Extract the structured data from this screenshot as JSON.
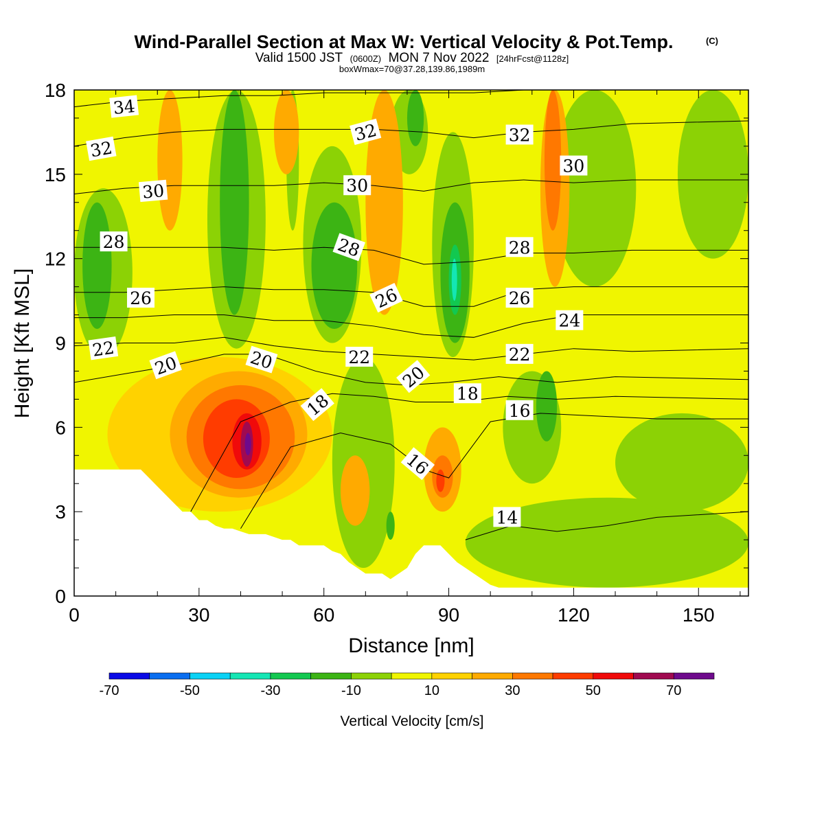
{
  "titles": {
    "main": "Wind-Parallel Section at Max W: Vertical Velocity & Pot.Temp.",
    "main_mark": "(C)",
    "line2_prefix": "Valid 1500 JST",
    "line2_z": "(0600Z)",
    "line2_mid": "MON 7 Nov 2022",
    "line2_fcst": "[24hrFcst@1128z]",
    "line3": "boxWmax=70@37.28,139.86,1989m"
  },
  "chart_data": {
    "type": "heatmap",
    "xlabel": "Distance [nm]",
    "ylabel": "Height [Kft MSL]",
    "xlim": [
      0,
      162
    ],
    "ylim": [
      0,
      18
    ],
    "x_ticks": [
      "0",
      "30",
      "60",
      "90",
      "120",
      "150"
    ],
    "y_ticks": [
      "0",
      "3",
      "6",
      "9",
      "12",
      "15",
      "18"
    ],
    "x_tick_values": [
      0,
      30,
      60,
      90,
      120,
      150
    ],
    "y_tick_values": [
      0,
      3,
      6,
      9,
      12,
      15,
      18
    ],
    "colorbar": {
      "title": "Vertical Velocity [cm/s]",
      "min": -70,
      "max": 80,
      "step": 10,
      "labels": [
        "-70",
        "-50",
        "-30",
        "-10",
        "10",
        "30",
        "50",
        "70"
      ],
      "label_values": [
        -70,
        -50,
        -30,
        -10,
        10,
        30,
        50,
        70
      ],
      "colors": [
        "#0a0ae6",
        "#0a6ef0",
        "#0ad2f5",
        "#14e6b4",
        "#12c850",
        "#3cb414",
        "#8cd205",
        "#f0f500",
        "#ffd200",
        "#ffaa00",
        "#ff7800",
        "#ff3c00",
        "#f00a0a",
        "#a00a50",
        "#6e0a8c"
      ]
    },
    "vertical_velocity_cells": [
      {
        "x": [
          0,
          162
        ],
        "y": [
          0,
          18
        ],
        "w": 5
      },
      {
        "x": [
          0,
          14
        ],
        "y": [
          8.5,
          14.5
        ],
        "w": -7
      },
      {
        "x": [
          2,
          9
        ],
        "y": [
          9.5,
          14
        ],
        "w": -13
      },
      {
        "x": [
          32,
          46
        ],
        "y": [
          8.8,
          18
        ],
        "w": -7
      },
      {
        "x": [
          35,
          42
        ],
        "y": [
          10,
          18
        ],
        "w": -13
      },
      {
        "x": [
          51,
          54
        ],
        "y": [
          13,
          18
        ],
        "w": -7
      },
      {
        "x": [
          55,
          69
        ],
        "y": [
          9,
          16
        ],
        "w": -7
      },
      {
        "x": [
          57,
          68
        ],
        "y": [
          9.5,
          14
        ],
        "w": -13
      },
      {
        "x": [
          76,
          85
        ],
        "y": [
          15,
          18
        ],
        "w": -7
      },
      {
        "x": [
          80,
          84
        ],
        "y": [
          16,
          18
        ],
        "w": -13
      },
      {
        "x": [
          86,
          96
        ],
        "y": [
          8.5,
          16.5
        ],
        "w": -7
      },
      {
        "x": [
          88,
          95
        ],
        "y": [
          9,
          14
        ],
        "w": -13
      },
      {
        "x": [
          90,
          93
        ],
        "y": [
          10,
          12.5
        ],
        "w": -27
      },
      {
        "x": [
          90.7,
          92
        ],
        "y": [
          10.5,
          12
        ],
        "w": -35
      },
      {
        "x": [
          115,
          135
        ],
        "y": [
          11,
          18
        ],
        "w": -7
      },
      {
        "x": [
          103,
          117
        ],
        "y": [
          4,
          8
        ],
        "w": -7
      },
      {
        "x": [
          111,
          116
        ],
        "y": [
          5.5,
          8
        ],
        "w": -13
      },
      {
        "x": [
          62,
          77
        ],
        "y": [
          1,
          8.5
        ],
        "w": -7
      },
      {
        "x": [
          75,
          77
        ],
        "y": [
          2,
          3
        ],
        "w": -13
      },
      {
        "x": [
          94,
          162
        ],
        "y": [
          0.3,
          3.5
        ],
        "w": -7
      },
      {
        "x": [
          130,
          162
        ],
        "y": [
          3,
          6.5
        ],
        "w": -7
      },
      {
        "x": [
          145,
          162
        ],
        "y": [
          12,
          18
        ],
        "w": -7
      },
      {
        "x": [
          8,
          62
        ],
        "y": [
          3,
          8.5
        ],
        "w": 15
      },
      {
        "x": [
          23,
          56
        ],
        "y": [
          3.5,
          8
        ],
        "w": 25
      },
      {
        "x": [
          27,
          53
        ],
        "y": [
          3.8,
          7.5
        ],
        "w": 35
      },
      {
        "x": [
          31,
          47
        ],
        "y": [
          4.2,
          7
        ],
        "w": 45
      },
      {
        "x": [
          38,
          45
        ],
        "y": [
          4.5,
          6.5
        ],
        "w": 55
      },
      {
        "x": [
          40,
          43
        ],
        "y": [
          4.6,
          6.2
        ],
        "w": 65
      },
      {
        "x": [
          41,
          42.5
        ],
        "y": [
          5,
          5.8
        ],
        "w": 75
      },
      {
        "x": [
          64,
          71
        ],
        "y": [
          2.5,
          5
        ],
        "w": 25
      },
      {
        "x": [
          84,
          93
        ],
        "y": [
          3,
          6
        ],
        "w": 25
      },
      {
        "x": [
          86,
          91
        ],
        "y": [
          3.5,
          5
        ],
        "w": 35
      },
      {
        "x": [
          87,
          89
        ],
        "y": [
          3.7,
          4.5
        ],
        "w": 45
      },
      {
        "x": [
          70,
          79
        ],
        "y": [
          10,
          18
        ],
        "w": 25
      },
      {
        "x": [
          112,
          119
        ],
        "y": [
          11,
          18
        ],
        "w": 25
      },
      {
        "x": [
          113,
          117
        ],
        "y": [
          13,
          18
        ],
        "w": 35
      },
      {
        "x": [
          20,
          26
        ],
        "y": [
          13,
          18
        ],
        "w": 25
      },
      {
        "x": [
          48,
          54
        ],
        "y": [
          15,
          18
        ],
        "w": 25
      }
    ],
    "terrain_profile": {
      "x": [
        0,
        16,
        18,
        20,
        22,
        24,
        26,
        28,
        30,
        32,
        34,
        36,
        38,
        40,
        42,
        44,
        46,
        48,
        50,
        52,
        54,
        56,
        58,
        60,
        62,
        64,
        66,
        68,
        70,
        72,
        74,
        76,
        78,
        80,
        82,
        84,
        86,
        88,
        90,
        92,
        94,
        96,
        98,
        100,
        102,
        104,
        162
      ],
      "y": [
        4.5,
        4.5,
        4.2,
        3.9,
        3.6,
        3.3,
        3.0,
        3.0,
        2.7,
        2.7,
        2.5,
        2.4,
        2.4,
        2.3,
        2.2,
        2.2,
        2.2,
        2.1,
        2.0,
        2.0,
        1.8,
        1.8,
        1.8,
        1.8,
        1.6,
        1.5,
        1.2,
        1.0,
        0.8,
        0.8,
        0.8,
        0.6,
        0.8,
        1.0,
        1.5,
        1.8,
        1.8,
        1.8,
        1.5,
        1.2,
        1.0,
        0.8,
        0.6,
        0.4,
        0.3,
        0.3,
        0.3
      ]
    },
    "theta_contours": [
      {
        "label": "14",
        "x": [
          94,
          105,
          116,
          128,
          140,
          162
        ],
        "y": [
          2.0,
          2.5,
          2.3,
          2.5,
          2.8,
          3.0
        ]
      },
      {
        "label": "16",
        "x": [
          40,
          52,
          64,
          76,
          84,
          90,
          100,
          112,
          126,
          140,
          162
        ],
        "y": [
          2.4,
          5.3,
          5.8,
          5.4,
          4.5,
          4.2,
          6.2,
          6.5,
          6.4,
          6.3,
          6.3
        ]
      },
      {
        "label": "18",
        "x": [
          28,
          40,
          52,
          62,
          72,
          82,
          92,
          104,
          116,
          130,
          162
        ],
        "y": [
          3.0,
          6.2,
          6.9,
          7.2,
          7.1,
          6.9,
          6.9,
          7.1,
          7.0,
          7.1,
          7.0
        ]
      },
      {
        "label": "20",
        "x": [
          0,
          12,
          24,
          36,
          46,
          58,
          70,
          80,
          90,
          102,
          116,
          130,
          162
        ],
        "y": [
          7.6,
          7.9,
          8.2,
          8.6,
          8.6,
          8.0,
          7.6,
          7.5,
          7.6,
          7.8,
          7.6,
          7.8,
          7.7
        ]
      },
      {
        "label": "22",
        "x": [
          0,
          12,
          24,
          36,
          48,
          60,
          72,
          84,
          96,
          108,
          120,
          134,
          162
        ],
        "y": [
          8.9,
          9.0,
          9.0,
          9.2,
          8.9,
          8.7,
          8.6,
          8.5,
          8.4,
          8.6,
          8.8,
          8.7,
          8.8
        ]
      },
      {
        "label": "24",
        "x": [
          0,
          12,
          24,
          36,
          48,
          60,
          72,
          84,
          96,
          108,
          120,
          134,
          162
        ],
        "y": [
          9.9,
          9.9,
          10.0,
          10.0,
          9.8,
          9.8,
          9.6,
          9.3,
          9.2,
          9.7,
          10.0,
          10.0,
          10.0
        ]
      },
      {
        "label": "26",
        "x": [
          0,
          12,
          24,
          36,
          48,
          60,
          72,
          84,
          96,
          108,
          120,
          134,
          162
        ],
        "y": [
          10.8,
          10.8,
          10.9,
          11.0,
          10.9,
          10.9,
          10.8,
          10.3,
          10.3,
          10.9,
          11.0,
          11.0,
          11.0
        ]
      },
      {
        "label": "28",
        "x": [
          0,
          12,
          24,
          36,
          48,
          60,
          72,
          84,
          96,
          108,
          120,
          134,
          162
        ],
        "y": [
          12.4,
          12.4,
          12.4,
          12.4,
          12.3,
          12.4,
          12.3,
          11.8,
          11.9,
          12.2,
          12.2,
          12.3,
          12.3
        ]
      },
      {
        "label": "30",
        "x": [
          0,
          12,
          24,
          36,
          48,
          60,
          72,
          84,
          96,
          108,
          120,
          134,
          162
        ],
        "y": [
          14.3,
          14.5,
          14.6,
          14.6,
          14.6,
          14.7,
          14.6,
          14.4,
          14.7,
          14.8,
          14.7,
          14.8,
          14.8
        ]
      },
      {
        "label": "32",
        "x": [
          0,
          12,
          24,
          36,
          48,
          60,
          72,
          84,
          96,
          108,
          120,
          134,
          162
        ],
        "y": [
          16.0,
          16.3,
          16.5,
          16.6,
          16.6,
          16.6,
          16.6,
          16.5,
          16.3,
          16.5,
          16.6,
          16.8,
          16.9
        ]
      },
      {
        "label": "34",
        "x": [
          0,
          12,
          24,
          36,
          48,
          60,
          72,
          84,
          96,
          108,
          120,
          134,
          162
        ],
        "y": [
          17.4,
          17.6,
          17.7,
          17.8,
          17.8,
          17.9,
          17.9,
          17.9,
          17.9,
          18.0,
          18.0,
          18.0,
          18.0
        ]
      }
    ],
    "contour_labels": [
      {
        "text": "34",
        "x": 12,
        "y": 17.4,
        "angle": -6
      },
      {
        "text": "32",
        "x": 6.5,
        "y": 15.9,
        "angle": -10
      },
      {
        "text": "30",
        "x": 19,
        "y": 14.4,
        "angle": -5
      },
      {
        "text": "28",
        "x": 9.5,
        "y": 12.6,
        "angle": 0
      },
      {
        "text": "26",
        "x": 16,
        "y": 10.6,
        "angle": 0
      },
      {
        "text": "22",
        "x": 7,
        "y": 8.8,
        "angle": -8
      },
      {
        "text": "20",
        "x": 22,
        "y": 8.2,
        "angle": -20
      },
      {
        "text": "20",
        "x": 45,
        "y": 8.4,
        "angle": 18
      },
      {
        "text": "18",
        "x": 58.5,
        "y": 6.8,
        "angle": -40
      },
      {
        "text": "22",
        "x": 68.5,
        "y": 8.5,
        "angle": 0
      },
      {
        "text": "20",
        "x": 81.5,
        "y": 7.8,
        "angle": -40
      },
      {
        "text": "18",
        "x": 94.5,
        "y": 7.2,
        "angle": 0
      },
      {
        "text": "16",
        "x": 82.5,
        "y": 4.7,
        "angle": 40
      },
      {
        "text": "32",
        "x": 70,
        "y": 16.5,
        "angle": -15
      },
      {
        "text": "30",
        "x": 68,
        "y": 14.6,
        "angle": 0
      },
      {
        "text": "28",
        "x": 66,
        "y": 12.4,
        "angle": 20
      },
      {
        "text": "26",
        "x": 75,
        "y": 10.6,
        "angle": -25
      },
      {
        "text": "32",
        "x": 107,
        "y": 16.4,
        "angle": 0
      },
      {
        "text": "30",
        "x": 120,
        "y": 15.3,
        "angle": 0
      },
      {
        "text": "28",
        "x": 107,
        "y": 12.4,
        "angle": 0
      },
      {
        "text": "26",
        "x": 107,
        "y": 10.6,
        "angle": 0
      },
      {
        "text": "24",
        "x": 119,
        "y": 9.8,
        "angle": 0
      },
      {
        "text": "22",
        "x": 107,
        "y": 8.6,
        "angle": 0
      },
      {
        "text": "16",
        "x": 107,
        "y": 6.6,
        "angle": 0
      },
      {
        "text": "14",
        "x": 104,
        "y": 2.8,
        "angle": 0
      }
    ]
  }
}
